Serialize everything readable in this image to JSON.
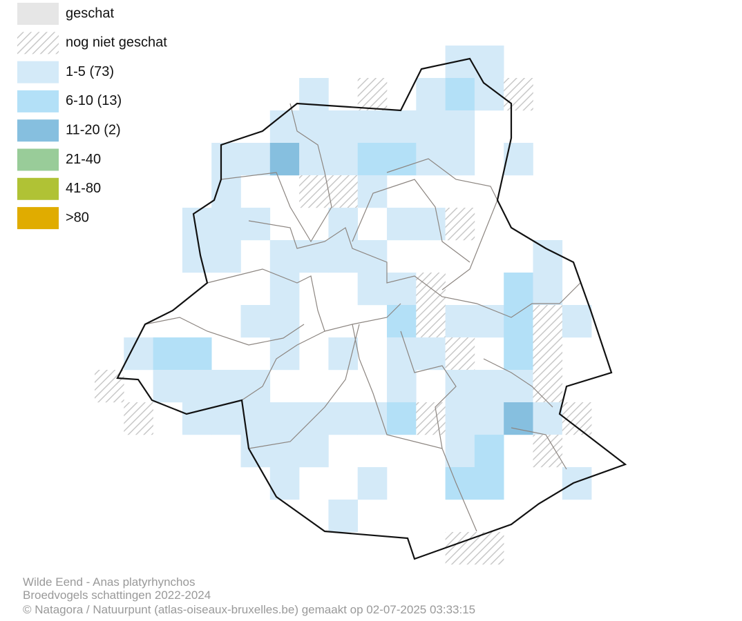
{
  "legend": [
    "geschat",
    "nog niet geschat",
    "1-5 (73)",
    "6-10 (13)",
    "11-20 (2)",
    "21-40",
    "41-80",
    ">80"
  ],
  "footer": [
    "Wilde Eend - Anas platyrhynchos",
    "Broedvogels schattingen 2022-2024",
    "© Natagora / Natuurpunt (atlas-oiseaux-bruxelles.be) gemaakt op 02-07-2025 03:33:15"
  ]
}
